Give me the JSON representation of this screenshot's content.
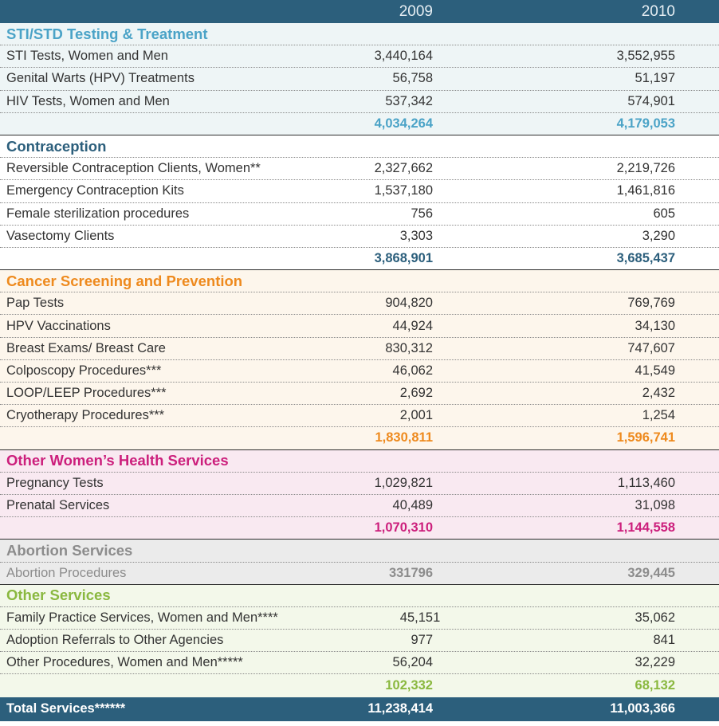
{
  "header": {
    "y2009": "2009",
    "y2010": "2010"
  },
  "sti": {
    "title": "STI/STD Testing & Treatment",
    "rows": [
      {
        "label": "STI Tests, Women and Men",
        "v2009": "3,440,164",
        "v2010": "3,552,955"
      },
      {
        "label": "Genital Warts (HPV) Treatments",
        "v2009": "56,758",
        "v2010": "51,197"
      },
      {
        "label": "HIV Tests, Women and Men",
        "v2009": "537,342",
        "v2010": "574,901"
      }
    ],
    "total": {
      "v2009": "4,034,264",
      "v2010": "4,179,053"
    }
  },
  "contraception": {
    "title": "Contraception",
    "rows": [
      {
        "label": "Reversible Contraception Clients, Women**",
        "v2009": "2,327,662",
        "v2010": "2,219,726"
      },
      {
        "label": "Emergency Contraception Kits",
        "v2009": "1,537,180",
        "v2010": "1,461,816"
      },
      {
        "label": "Female sterilization procedures",
        "v2009": "756",
        "v2010": "605"
      },
      {
        "label": "Vasectomy Clients",
        "v2009": "3,303",
        "v2010": "3,290"
      }
    ],
    "total": {
      "v2009": "3,868,901",
      "v2010": "3,685,437"
    }
  },
  "cancer": {
    "title": "Cancer Screening and Prevention",
    "rows": [
      {
        "label": "Pap Tests",
        "v2009": "904,820",
        "v2010": "769,769"
      },
      {
        "label": "HPV Vaccinations",
        "v2009": "44,924",
        "v2010": "34,130"
      },
      {
        "label": "Breast Exams/ Breast Care",
        "v2009": "830,312",
        "v2010": "747,607"
      },
      {
        "label": "Colposcopy Procedures***",
        "v2009": "46,062",
        "v2010": "41,549"
      },
      {
        "label": "LOOP/LEEP Procedures***",
        "v2009": "2,692",
        "v2010": "2,432"
      },
      {
        "label": "Cryotherapy Procedures***",
        "v2009": "2,001",
        "v2010": "1,254"
      }
    ],
    "total": {
      "v2009": "1,830,811",
      "v2010": "1,596,741"
    }
  },
  "womens": {
    "title": "Other Women’s Health Services",
    "rows": [
      {
        "label": "Pregnancy Tests",
        "v2009": "1,029,821",
        "v2010": "1,113,460"
      },
      {
        "label": "Prenatal Services",
        "v2009": "40,489",
        "v2010": "31,098"
      }
    ],
    "total": {
      "v2009": "1,070,310",
      "v2010": "1,144,558"
    }
  },
  "abortion": {
    "title": "Abortion Services",
    "rows": [
      {
        "label": "Abortion Procedures",
        "v2009": "331796",
        "v2010": "329,445"
      }
    ]
  },
  "other": {
    "title": "Other Services",
    "rows": [
      {
        "label": "Family Practice Services, Women and Men****",
        "v2009": "45,151",
        "v2010": "35,062"
      },
      {
        "label": "Adoption Referrals to Other Agencies",
        "v2009": "977",
        "v2010": "841"
      },
      {
        "label": "Other Procedures, Women and Men*****",
        "v2009": "56,204",
        "v2010": "32,229"
      }
    ],
    "total": {
      "v2009": "102,332",
      "v2010": "68,132"
    }
  },
  "grand_total": {
    "label": "Total Services******",
    "v2009": "11,238,414",
    "v2010": "11,003,366"
  },
  "colors": {
    "header_bg": "#2c5f7c",
    "sti": "#4ba3c7",
    "contraception": "#2c5f7c",
    "cancer": "#ee8a1e",
    "womens": "#cc1f7c",
    "abortion": "#8c8c8c",
    "other": "#8ab83f"
  }
}
